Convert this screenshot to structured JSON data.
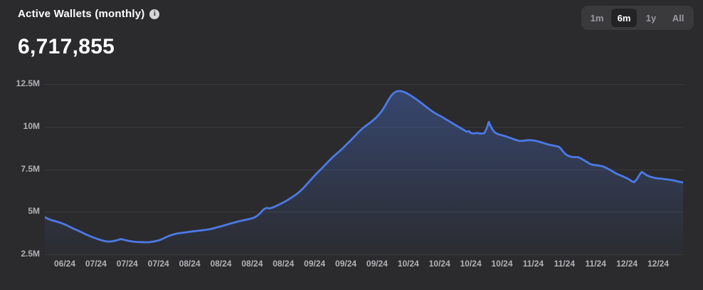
{
  "header": {
    "title": "Active Wallets (monthly)",
    "info_icon": "i",
    "current_value": "6,717,855"
  },
  "range_selector": {
    "options": [
      {
        "label": "1m",
        "selected": false
      },
      {
        "label": "6m",
        "selected": true
      },
      {
        "label": "1y",
        "selected": false
      },
      {
        "label": "All",
        "selected": false
      }
    ]
  },
  "colors": {
    "background": "#2b2b2d",
    "line": "#4c79e6",
    "area_top": "rgba(74,120,230,0.35)",
    "area_bottom": "rgba(74,120,230,0.02)",
    "gridline": "#3a3a3e",
    "axis_label": "#b2b2b6",
    "button_group_bg": "#3a3a3d",
    "selected_button_bg": "#232326",
    "button_text": "#9b9ba0",
    "selected_button_text": "#ffffff"
  },
  "chart_data": {
    "type": "area",
    "title": "Active Wallets (monthly)",
    "current_value": 6717855,
    "unit": "millions",
    "y_range": [
      2.5,
      12.5
    ],
    "y_ticks": [
      "12.5M",
      "10M",
      "7.5M",
      "5M",
      "2.5M"
    ],
    "y_tick_values": [
      12.5,
      10,
      7.5,
      5,
      2.5
    ],
    "x_tick_labels": [
      "06/24",
      "07/24",
      "07/24",
      "07/24",
      "08/24",
      "08/24",
      "08/24",
      "08/24",
      "09/24",
      "09/24",
      "09/24",
      "10/24",
      "10/24",
      "10/24",
      "10/24",
      "11/24",
      "11/24",
      "11/24",
      "12/24",
      "12/24"
    ],
    "grid": true,
    "legend": false,
    "points": [
      [
        0,
        4.68
      ],
      [
        5,
        4.58
      ],
      [
        11,
        4.49
      ],
      [
        17,
        4.42
      ],
      [
        23,
        4.34
      ],
      [
        29,
        4.24
      ],
      [
        35,
        4.12
      ],
      [
        41,
        4.0
      ],
      [
        47,
        3.89
      ],
      [
        53,
        3.77
      ],
      [
        59,
        3.65
      ],
      [
        65,
        3.54
      ],
      [
        71,
        3.45
      ],
      [
        77,
        3.36
      ],
      [
        83,
        3.29
      ],
      [
        89,
        3.25
      ],
      [
        95,
        3.27
      ],
      [
        101,
        3.33
      ],
      [
        107,
        3.4
      ],
      [
        112,
        3.35
      ],
      [
        118,
        3.29
      ],
      [
        124,
        3.25
      ],
      [
        130,
        3.23
      ],
      [
        136,
        3.22
      ],
      [
        142,
        3.21
      ],
      [
        148,
        3.22
      ],
      [
        154,
        3.26
      ],
      [
        160,
        3.32
      ],
      [
        166,
        3.42
      ],
      [
        172,
        3.54
      ],
      [
        178,
        3.64
      ],
      [
        184,
        3.71
      ],
      [
        190,
        3.75
      ],
      [
        196,
        3.78
      ],
      [
        202,
        3.82
      ],
      [
        208,
        3.85
      ],
      [
        214,
        3.88
      ],
      [
        220,
        3.91
      ],
      [
        226,
        3.94
      ],
      [
        232,
        3.98
      ],
      [
        239,
        4.05
      ],
      [
        246,
        4.13
      ],
      [
        253,
        4.21
      ],
      [
        260,
        4.3
      ],
      [
        267,
        4.38
      ],
      [
        274,
        4.46
      ],
      [
        281,
        4.52
      ],
      [
        288,
        4.58
      ],
      [
        294,
        4.66
      ],
      [
        299,
        4.78
      ],
      [
        303,
        4.93
      ],
      [
        306,
        5.08
      ],
      [
        309,
        5.18
      ],
      [
        312,
        5.23
      ],
      [
        316,
        5.2
      ],
      [
        320,
        5.25
      ],
      [
        324,
        5.32
      ],
      [
        329,
        5.42
      ],
      [
        334,
        5.52
      ],
      [
        340,
        5.66
      ],
      [
        346,
        5.82
      ],
      [
        352,
        5.98
      ],
      [
        358,
        6.18
      ],
      [
        364,
        6.42
      ],
      [
        370,
        6.7
      ],
      [
        376,
        6.98
      ],
      [
        382,
        7.25
      ],
      [
        388,
        7.5
      ],
      [
        394,
        7.76
      ],
      [
        400,
        8.02
      ],
      [
        406,
        8.26
      ],
      [
        412,
        8.48
      ],
      [
        418,
        8.7
      ],
      [
        424,
        8.95
      ],
      [
        430,
        9.2
      ],
      [
        436,
        9.46
      ],
      [
        441,
        9.68
      ],
      [
        446,
        9.88
      ],
      [
        451,
        10.05
      ],
      [
        456,
        10.2
      ],
      [
        461,
        10.36
      ],
      [
        466,
        10.55
      ],
      [
        471,
        10.78
      ],
      [
        475,
        11.0
      ],
      [
        479,
        11.28
      ],
      [
        483,
        11.58
      ],
      [
        487,
        11.83
      ],
      [
        491,
        12.0
      ],
      [
        495,
        12.08
      ],
      [
        499,
        12.1
      ],
      [
        503,
        12.06
      ],
      [
        508,
        11.98
      ],
      [
        513,
        11.86
      ],
      [
        518,
        11.72
      ],
      [
        523,
        11.58
      ],
      [
        528,
        11.42
      ],
      [
        533,
        11.26
      ],
      [
        538,
        11.1
      ],
      [
        543,
        10.94
      ],
      [
        548,
        10.8
      ],
      [
        553,
        10.68
      ],
      [
        557,
        10.6
      ],
      [
        561,
        10.5
      ],
      [
        565,
        10.4
      ],
      [
        569,
        10.3
      ],
      [
        573,
        10.2
      ],
      [
        577,
        10.1
      ],
      [
        581,
        10.0
      ],
      [
        585,
        9.9
      ],
      [
        589,
        9.8
      ],
      [
        593,
        9.7
      ],
      [
        596,
        9.74
      ],
      [
        599,
        9.62
      ],
      [
        603,
        9.6
      ],
      [
        607,
        9.63
      ],
      [
        611,
        9.6
      ],
      [
        615,
        9.59
      ],
      [
        618,
        9.62
      ],
      [
        621,
        9.9
      ],
      [
        624,
        10.28
      ],
      [
        627,
        10.0
      ],
      [
        630,
        9.78
      ],
      [
        633,
        9.64
      ],
      [
        637,
        9.56
      ],
      [
        642,
        9.5
      ],
      [
        647,
        9.44
      ],
      [
        652,
        9.37
      ],
      [
        657,
        9.29
      ],
      [
        662,
        9.22
      ],
      [
        667,
        9.16
      ],
      [
        672,
        9.17
      ],
      [
        677,
        9.2
      ],
      [
        682,
        9.21
      ],
      [
        687,
        9.19
      ],
      [
        692,
        9.15
      ],
      [
        697,
        9.09
      ],
      [
        702,
        9.02
      ],
      [
        707,
        8.96
      ],
      [
        712,
        8.91
      ],
      [
        717,
        8.87
      ],
      [
        722,
        8.83
      ],
      [
        725,
        8.72
      ],
      [
        728,
        8.56
      ],
      [
        731,
        8.42
      ],
      [
        734,
        8.32
      ],
      [
        738,
        8.25
      ],
      [
        742,
        8.21
      ],
      [
        746,
        8.21
      ],
      [
        750,
        8.2
      ],
      [
        754,
        8.12
      ],
      [
        758,
        8.02
      ],
      [
        762,
        7.92
      ],
      [
        766,
        7.82
      ],
      [
        770,
        7.76
      ],
      [
        774,
        7.74
      ],
      [
        778,
        7.72
      ],
      [
        782,
        7.69
      ],
      [
        786,
        7.64
      ],
      [
        790,
        7.56
      ],
      [
        794,
        7.47
      ],
      [
        798,
        7.37
      ],
      [
        802,
        7.27
      ],
      [
        806,
        7.19
      ],
      [
        810,
        7.12
      ],
      [
        814,
        7.05
      ],
      [
        818,
        6.97
      ],
      [
        822,
        6.88
      ],
      [
        825,
        6.79
      ],
      [
        828,
        6.74
      ],
      [
        831,
        6.86
      ],
      [
        834,
        7.05
      ],
      [
        837,
        7.25
      ],
      [
        839,
        7.34
      ],
      [
        842,
        7.26
      ],
      [
        845,
        7.17
      ],
      [
        849,
        7.09
      ],
      [
        853,
        7.03
      ],
      [
        857,
        6.99
      ],
      [
        861,
        6.96
      ],
      [
        865,
        6.95
      ],
      [
        869,
        6.93
      ],
      [
        873,
        6.91
      ],
      [
        877,
        6.89
      ],
      [
        881,
        6.86
      ],
      [
        885,
        6.83
      ],
      [
        889,
        6.79
      ],
      [
        893,
        6.75
      ],
      [
        897,
        6.72
      ]
    ]
  }
}
